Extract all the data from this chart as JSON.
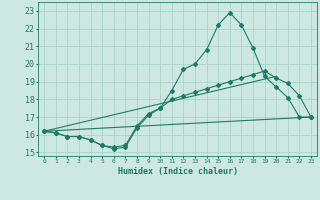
{
  "xlabel": "Humidex (Indice chaleur)",
  "xlim": [
    -0.5,
    23.5
  ],
  "ylim": [
    14.8,
    23.5
  ],
  "xticks": [
    0,
    1,
    2,
    3,
    4,
    5,
    6,
    7,
    8,
    9,
    10,
    11,
    12,
    13,
    14,
    15,
    16,
    17,
    18,
    19,
    20,
    21,
    22,
    23
  ],
  "yticks": [
    15,
    16,
    17,
    18,
    19,
    20,
    21,
    22,
    23
  ],
  "bg_color": "#cce8e0",
  "grid_color": "#aad4ca",
  "line_color": "#1e7a66",
  "series1_x": [
    0,
    1,
    2,
    3,
    4,
    5,
    6,
    7,
    8,
    9,
    10,
    11,
    12,
    13,
    14,
    15,
    16,
    17,
    18,
    19,
    20,
    21,
    22,
    23
  ],
  "series1_y": [
    16.2,
    16.1,
    15.9,
    15.9,
    15.7,
    15.4,
    15.2,
    15.3,
    16.4,
    17.1,
    17.5,
    18.5,
    19.7,
    20.0,
    20.8,
    22.2,
    22.9,
    22.2,
    20.9,
    19.3,
    18.7,
    18.1,
    17.0,
    17.0
  ],
  "series2_x": [
    0,
    1,
    2,
    3,
    4,
    5,
    6,
    7,
    8,
    9,
    10,
    11,
    12,
    13,
    14,
    15,
    16,
    17,
    18,
    19,
    20,
    21,
    22,
    23
  ],
  "series2_y": [
    16.2,
    16.1,
    15.9,
    15.9,
    15.7,
    15.4,
    15.3,
    15.4,
    16.5,
    17.2,
    17.5,
    18.0,
    18.2,
    18.4,
    18.6,
    18.8,
    19.0,
    19.2,
    19.4,
    19.6,
    19.2,
    18.9,
    18.2,
    17.0
  ],
  "series3_x": [
    0,
    23
  ],
  "series3_y": [
    16.2,
    17.0
  ],
  "series4_x": [
    0,
    20
  ],
  "series4_y": [
    16.2,
    19.3
  ]
}
